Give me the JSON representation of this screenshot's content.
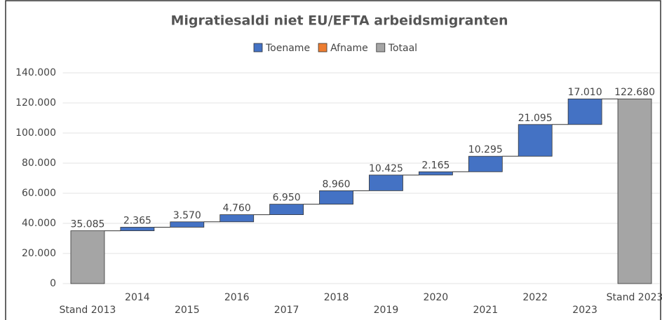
{
  "chart_data": {
    "type": "waterfall",
    "title": "Migratiesaldi niet EU/EFTA arbeidsmigranten",
    "legend": [
      {
        "name": "Toename",
        "color": "#4472c4",
        "measure": "increase"
      },
      {
        "name": "Afname",
        "color": "#ed7d31",
        "measure": "decrease"
      },
      {
        "name": "Totaal",
        "color": "#a5a5a5",
        "measure": "total"
      }
    ],
    "categories": [
      "Stand 2013",
      "2014",
      "2015",
      "2016",
      "2017",
      "2018",
      "2019",
      "2020",
      "2021",
      "2022",
      "2023",
      "Stand 2023"
    ],
    "measures": [
      "total",
      "increase",
      "increase",
      "increase",
      "increase",
      "increase",
      "increase",
      "increase",
      "increase",
      "increase",
      "increase",
      "total"
    ],
    "values": [
      35085,
      2365,
      3570,
      4760,
      6950,
      8960,
      10425,
      2165,
      10295,
      21095,
      17010,
      122680
    ],
    "value_labels": [
      "35.085",
      "2.365",
      "3.570",
      "4.760",
      "6.950",
      "8.960",
      "10.425",
      "2.165",
      "10.295",
      "21.095",
      "17.010",
      "122.680"
    ],
    "ylim": [
      0,
      140000
    ],
    "yticks": [
      0,
      {
        "value": 20000,
        "label": "20.000"
      },
      {
        "value": 40000,
        "label": "40.000"
      },
      {
        "value": 60000,
        "label": "60.000"
      },
      {
        "value": 80000,
        "label": "80.000"
      },
      {
        "value": 100000,
        "label": "100.000"
      },
      {
        "value": 120000,
        "label": "120.000"
      },
      {
        "value": 140000,
        "label": "140.000"
      }
    ],
    "grid": true
  }
}
